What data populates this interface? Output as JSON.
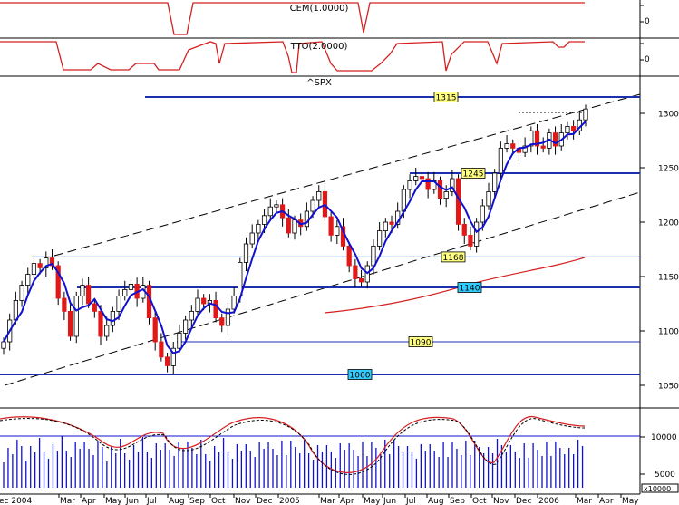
{
  "symbol": "^SPX",
  "panels": {
    "cem": {
      "label": "CEM(1.0000)",
      "tick": "0"
    },
    "tto": {
      "label": "TTO(2.0000)",
      "tick": "0"
    }
  },
  "volume_axis": {
    "ticks": [
      "10000",
      "5000"
    ],
    "unit": "x10000"
  },
  "months": [
    "ec 2004",
    "Mar",
    "Apr",
    "May",
    "Jun",
    "Jul",
    "Aug",
    "Sep",
    "Oct",
    "Nov",
    "Dec",
    "2005",
    "Mar",
    "Apr",
    "May",
    "Jun",
    "Jul",
    "Aug",
    "Sep",
    "Oct",
    "Nov",
    "Dec",
    "2006",
    "Mar",
    "Apr",
    "May"
  ],
  "colors": {
    "up": "#ffffff",
    "down": "#e01818",
    "ma": "#1010d0",
    "level": "#1c2fb0",
    "red_line": "#d42020",
    "label_yellow": "#ffff80",
    "label_cyan": "#33ccff"
  },
  "chart_data": {
    "type": "candlestick",
    "title": "^SPX",
    "ylim": [
      1020,
      1320
    ],
    "yticks": [
      1050,
      1100,
      1150,
      1200,
      1250,
      1300
    ],
    "levels": [
      {
        "value": 1315,
        "label": "1315",
        "style": "yellow"
      },
      {
        "value": 1245,
        "label": "1245",
        "style": "yellow"
      },
      {
        "value": 1168,
        "label": "1168",
        "style": "yellow"
      },
      {
        "value": 1140,
        "label": "1140",
        "style": "cyan"
      },
      {
        "value": 1090,
        "label": "1090",
        "style": "yellow"
      },
      {
        "value": 1060,
        "label": "1060",
        "style": "cyan"
      }
    ],
    "weekly_close": [
      1090,
      1110,
      1128,
      1142,
      1152,
      1162,
      1158,
      1167,
      1160,
      1130,
      1118,
      1095,
      1132,
      1142,
      1125,
      1118,
      1095,
      1105,
      1118,
      1132,
      1138,
      1143,
      1130,
      1142,
      1112,
      1090,
      1076,
      1068,
      1084,
      1098,
      1110,
      1118,
      1130,
      1125,
      1128,
      1112,
      1105,
      1120,
      1132,
      1163,
      1180,
      1190,
      1198,
      1206,
      1214,
      1216,
      1204,
      1190,
      1202,
      1196,
      1210,
      1220,
      1228,
      1205,
      1188,
      1196,
      1178,
      1160,
      1148,
      1145,
      1160,
      1178,
      1192,
      1200,
      1198,
      1210,
      1230,
      1238,
      1242,
      1240,
      1230,
      1238,
      1222,
      1228,
      1240,
      1198,
      1188,
      1178,
      1200,
      1215,
      1228,
      1245,
      1268,
      1272,
      1268,
      1264,
      1270,
      1284,
      1270,
      1268,
      1282,
      1270,
      1282,
      1288,
      1284,
      1294,
      1304
    ]
  }
}
